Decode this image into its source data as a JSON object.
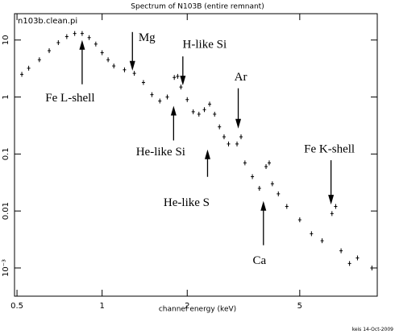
{
  "chart_data": {
    "type": "scatter",
    "title": "Spectrum of N103B (entire remnant)",
    "subtitle": "n103b.clean.pi",
    "x_label": "channel energy (keV)",
    "footer": "keis 14-Oct-2009",
    "log_x": true,
    "log_y": true,
    "xlim": [
      0.49,
      9.4
    ],
    "ylim": [
      0.00032,
      29
    ],
    "xticks": [
      0.5,
      1,
      2,
      5
    ],
    "yticks": [
      10,
      1,
      0.1,
      0.01,
      {
        "value": 0.001,
        "label": "10⁻³"
      }
    ],
    "color": "#000000",
    "x": [
      0.52,
      0.55,
      0.6,
      0.65,
      0.7,
      0.75,
      0.8,
      0.85,
      0.9,
      0.95,
      1.0,
      1.05,
      1.1,
      1.2,
      1.3,
      1.4,
      1.5,
      1.6,
      1.7,
      1.8,
      1.85,
      1.9,
      2.0,
      2.1,
      2.2,
      2.3,
      2.4,
      2.5,
      2.6,
      2.7,
      2.8,
      3.0,
      3.1,
      3.2,
      3.4,
      3.6,
      3.8,
      3.9,
      4.0,
      4.2,
      4.5,
      5.0,
      5.5,
      6.0,
      6.5,
      6.7,
      7.0,
      7.5,
      8.0,
      9.0
    ],
    "values": [
      2.5,
      3.2,
      4.5,
      6.5,
      9,
      11.5,
      13,
      13,
      11,
      8.5,
      6,
      4.5,
      3.5,
      3,
      2.6,
      1.8,
      1.1,
      0.85,
      1.0,
      2.2,
      2.3,
      1.5,
      0.9,
      0.55,
      0.5,
      0.6,
      0.75,
      0.5,
      0.3,
      0.2,
      0.15,
      0.15,
      0.2,
      0.07,
      0.04,
      0.025,
      0.06,
      0.07,
      0.03,
      0.02,
      0.012,
      0.007,
      0.004,
      0.003,
      0.009,
      0.012,
      0.002,
      0.0012,
      0.0015,
      0.001
    ],
    "annotations": [
      {
        "text": "Fe L-shell",
        "x": 0.85,
        "y": 10
      },
      {
        "text": "Mg",
        "x": 1.28,
        "y": 2.9
      },
      {
        "text": "H-like Si",
        "x": 1.93,
        "y": 1.6
      },
      {
        "text": "He-like Si",
        "x": 1.79,
        "y": 0.7
      },
      {
        "text": "Ar",
        "x": 3.03,
        "y": 0.28
      },
      {
        "text": "He-like S",
        "x": 2.36,
        "y": 0.12
      },
      {
        "text": "Ca",
        "x": 3.72,
        "y": 0.015
      },
      {
        "text": "Fe K-shell",
        "x": 6.45,
        "y": 0.013
      }
    ]
  }
}
